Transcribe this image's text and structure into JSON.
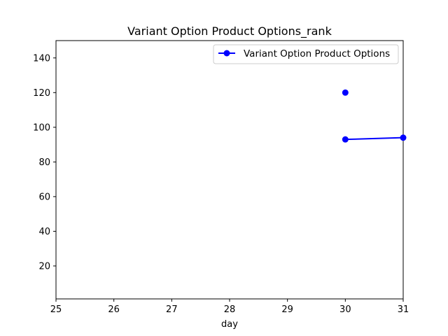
{
  "chart_data": {
    "type": "line",
    "title": "Variant Option Product Options_rank",
    "xlabel": "day",
    "ylabel": "",
    "xlim": [
      25,
      31
    ],
    "ylim": [
      1,
      150
    ],
    "xticks": [
      25,
      26,
      27,
      28,
      29,
      30,
      31
    ],
    "yticks": [
      20,
      40,
      60,
      80,
      100,
      120,
      140
    ],
    "grid": false,
    "legend_position": "top-right",
    "series": [
      {
        "name": "Variant Option Product Options",
        "color": "#0000ff",
        "marker": "circle",
        "points": [
          {
            "x": 30,
            "y": 120
          },
          {
            "x": 30,
            "y": 93
          },
          {
            "x": 31,
            "y": 94
          }
        ],
        "line_segments": [
          [
            1,
            2
          ]
        ]
      }
    ]
  }
}
